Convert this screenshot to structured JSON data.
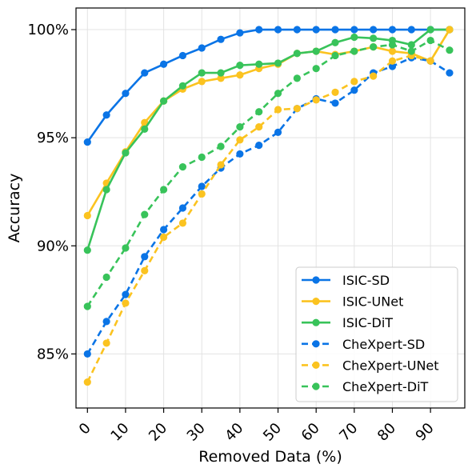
{
  "chart_data": {
    "type": "line",
    "xlabel": "Removed Data (%)",
    "ylabel": "Accuracy",
    "xlim": [
      -3,
      99
    ],
    "ylim": [
      82.5,
      101
    ],
    "xticks": [
      0,
      10,
      20,
      30,
      40,
      50,
      60,
      70,
      80,
      90
    ],
    "xtick_labels": [
      "0",
      "10",
      "20",
      "30",
      "40",
      "50",
      "60",
      "70",
      "80",
      "90"
    ],
    "yticks": [
      85,
      90,
      95,
      100
    ],
    "ytick_labels": [
      "85%",
      "90%",
      "95%",
      "100%"
    ],
    "grid": true,
    "legend_position": "lower-right",
    "x": [
      0,
      5,
      10,
      15,
      20,
      25,
      30,
      35,
      40,
      45,
      50,
      55,
      60,
      65,
      70,
      75,
      80,
      85,
      90,
      95
    ],
    "series": [
      {
        "name": "ISIC-SD",
        "color": "#0a74e6",
        "style": "solid",
        "values": [
          94.8,
          96.05,
          97.05,
          98.0,
          98.4,
          98.8,
          99.15,
          99.55,
          99.85,
          100.0,
          100.0,
          100.0,
          100.0,
          100.0,
          100.0,
          100.0,
          100.0,
          100.0,
          100.0,
          100.0
        ]
      },
      {
        "name": "ISIC-UNet",
        "color": "#fbc320",
        "style": "solid",
        "values": [
          91.4,
          92.9,
          94.35,
          95.7,
          96.7,
          97.25,
          97.6,
          97.75,
          97.9,
          98.2,
          98.4,
          98.9,
          99.0,
          98.85,
          99.0,
          99.2,
          99.0,
          98.9,
          98.55,
          100.0
        ]
      },
      {
        "name": "ISIC-DiT",
        "color": "#38c35a",
        "style": "solid",
        "values": [
          89.8,
          92.6,
          94.3,
          95.4,
          96.7,
          97.4,
          98.0,
          98.0,
          98.35,
          98.4,
          98.45,
          98.9,
          99.0,
          99.4,
          99.65,
          99.6,
          99.5,
          99.3,
          100.0,
          100.0
        ]
      },
      {
        "name": "CheXpert-SD",
        "color": "#0a74e6",
        "style": "dashed",
        "values": [
          85.0,
          86.5,
          87.75,
          89.5,
          90.75,
          91.75,
          92.75,
          93.6,
          94.25,
          94.65,
          95.25,
          96.35,
          96.8,
          96.6,
          97.2,
          98.0,
          98.3,
          98.7,
          98.55,
          98.0
        ]
      },
      {
        "name": "CheXpert-UNet",
        "color": "#fbc320",
        "style": "dashed",
        "values": [
          83.7,
          85.5,
          87.35,
          88.85,
          90.4,
          91.05,
          92.4,
          93.75,
          94.9,
          95.5,
          96.3,
          96.35,
          96.75,
          97.1,
          97.6,
          97.85,
          98.55,
          98.8,
          98.55,
          100.0
        ]
      },
      {
        "name": "CheXpert-DiT",
        "color": "#38c35a",
        "style": "dashed",
        "values": [
          87.2,
          88.55,
          89.9,
          91.45,
          92.6,
          93.65,
          94.1,
          94.6,
          95.5,
          96.2,
          97.05,
          97.75,
          98.2,
          98.8,
          99.0,
          99.2,
          99.3,
          99.0,
          99.5,
          99.05
        ]
      }
    ]
  }
}
